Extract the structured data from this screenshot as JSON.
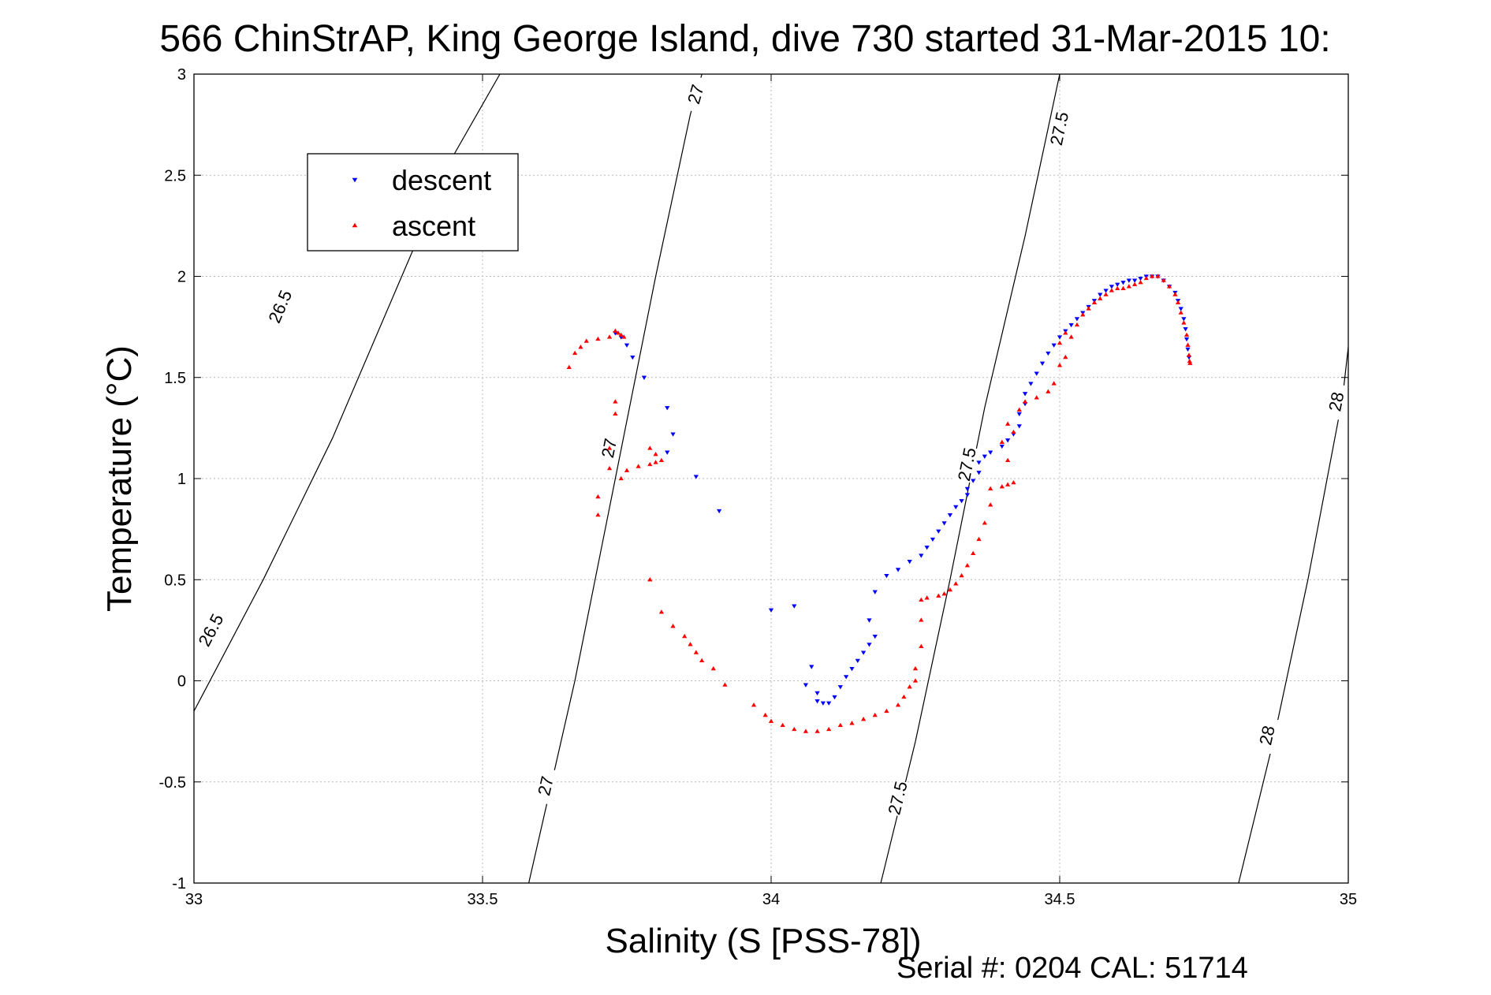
{
  "chart_data": {
    "type": "scatter",
    "title": "566 ChinStrAP, King George Island, dive 730 started 31-Mar-2015 10:",
    "xlabel": "Salinity (S [PSS-78])",
    "ylabel": "Temperature (°C)",
    "xlim": [
      33,
      35
    ],
    "ylim": [
      -1,
      3
    ],
    "xticks": [
      "33",
      "33.5",
      "34",
      "34.5",
      "35"
    ],
    "yticks": [
      "-1",
      "-0.5",
      "0",
      "0.5",
      "1",
      "1.5",
      "2",
      "2.5",
      "3"
    ],
    "grid": true,
    "legend_position": "top-left",
    "footer": "Serial #: 0204  CAL: 51714",
    "series": [
      {
        "name": "descent",
        "color": "#0000ff",
        "marker": "triangle-down",
        "points": [
          [
            33.73,
            1.72
          ],
          [
            33.74,
            1.7
          ],
          [
            33.75,
            1.66
          ],
          [
            33.76,
            1.6
          ],
          [
            33.78,
            1.5
          ],
          [
            33.82,
            1.35
          ],
          [
            33.83,
            1.22
          ],
          [
            33.82,
            1.13
          ],
          [
            33.87,
            1.01
          ],
          [
            33.91,
            0.84
          ],
          [
            34.0,
            0.35
          ],
          [
            34.04,
            0.37
          ],
          [
            34.07,
            0.07
          ],
          [
            34.06,
            -0.02
          ],
          [
            34.08,
            -0.06
          ],
          [
            34.08,
            -0.1
          ],
          [
            34.09,
            -0.11
          ],
          [
            34.1,
            -0.11
          ],
          [
            34.11,
            -0.08
          ],
          [
            34.12,
            -0.03
          ],
          [
            34.13,
            0.02
          ],
          [
            34.14,
            0.06
          ],
          [
            34.15,
            0.1
          ],
          [
            34.16,
            0.14
          ],
          [
            34.17,
            0.18
          ],
          [
            34.18,
            0.22
          ],
          [
            34.17,
            0.3
          ],
          [
            34.18,
            0.44
          ],
          [
            34.2,
            0.52
          ],
          [
            34.22,
            0.55
          ],
          [
            34.24,
            0.59
          ],
          [
            34.26,
            0.62
          ],
          [
            34.27,
            0.66
          ],
          [
            34.28,
            0.7
          ],
          [
            34.29,
            0.74
          ],
          [
            34.3,
            0.78
          ],
          [
            34.31,
            0.82
          ],
          [
            34.32,
            0.86
          ],
          [
            34.33,
            0.89
          ],
          [
            34.34,
            0.92
          ],
          [
            34.34,
            0.95
          ],
          [
            34.35,
            0.99
          ],
          [
            34.36,
            1.03
          ],
          [
            34.36,
            1.08
          ],
          [
            34.37,
            1.11
          ],
          [
            34.38,
            1.13
          ],
          [
            34.4,
            1.16
          ],
          [
            34.41,
            1.19
          ],
          [
            34.42,
            1.22
          ],
          [
            34.43,
            1.26
          ],
          [
            34.43,
            1.32
          ],
          [
            34.44,
            1.37
          ],
          [
            34.44,
            1.42
          ],
          [
            34.45,
            1.47
          ],
          [
            34.46,
            1.52
          ],
          [
            34.47,
            1.57
          ],
          [
            34.48,
            1.62
          ],
          [
            34.49,
            1.66
          ],
          [
            34.5,
            1.7
          ],
          [
            34.51,
            1.73
          ],
          [
            34.52,
            1.76
          ],
          [
            34.53,
            1.79
          ],
          [
            34.54,
            1.82
          ],
          [
            34.55,
            1.85
          ],
          [
            34.56,
            1.88
          ],
          [
            34.57,
            1.91
          ],
          [
            34.58,
            1.93
          ],
          [
            34.59,
            1.95
          ],
          [
            34.6,
            1.96
          ],
          [
            34.61,
            1.97
          ],
          [
            34.62,
            1.98
          ],
          [
            34.63,
            1.98
          ],
          [
            34.64,
            1.99
          ],
          [
            34.65,
            2.0
          ],
          [
            34.66,
            2.0
          ],
          [
            34.67,
            2.0
          ],
          [
            34.68,
            1.98
          ],
          [
            34.69,
            1.95
          ],
          [
            34.7,
            1.92
          ],
          [
            34.705,
            1.88
          ],
          [
            34.71,
            1.84
          ],
          [
            34.715,
            1.79
          ],
          [
            34.718,
            1.74
          ],
          [
            34.72,
            1.69
          ],
          [
            34.722,
            1.64
          ],
          [
            34.724,
            1.6
          ]
        ]
      },
      {
        "name": "ascent",
        "color": "#ff0000",
        "marker": "triangle-up",
        "points": [
          [
            33.65,
            1.55
          ],
          [
            33.66,
            1.62
          ],
          [
            33.67,
            1.65
          ],
          [
            33.68,
            1.68
          ],
          [
            33.7,
            1.69
          ],
          [
            33.72,
            1.7
          ],
          [
            33.73,
            1.73
          ],
          [
            33.735,
            1.72
          ],
          [
            33.74,
            1.71
          ],
          [
            33.745,
            1.7
          ],
          [
            33.73,
            1.38
          ],
          [
            33.73,
            1.32
          ],
          [
            33.72,
            1.15
          ],
          [
            33.72,
            1.05
          ],
          [
            33.74,
            1.0
          ],
          [
            33.75,
            1.04
          ],
          [
            33.77,
            1.06
          ],
          [
            33.79,
            1.07
          ],
          [
            33.8,
            1.08
          ],
          [
            33.81,
            1.09
          ],
          [
            33.79,
            1.15
          ],
          [
            33.8,
            1.12
          ],
          [
            33.7,
            0.91
          ],
          [
            33.7,
            0.82
          ],
          [
            33.79,
            0.5
          ],
          [
            33.81,
            0.34
          ],
          [
            33.83,
            0.27
          ],
          [
            33.85,
            0.22
          ],
          [
            33.86,
            0.18
          ],
          [
            33.87,
            0.14
          ],
          [
            33.88,
            0.1
          ],
          [
            33.9,
            0.06
          ],
          [
            33.92,
            -0.02
          ],
          [
            33.97,
            -0.12
          ],
          [
            33.99,
            -0.17
          ],
          [
            34.0,
            -0.2
          ],
          [
            34.02,
            -0.22
          ],
          [
            34.04,
            -0.24
          ],
          [
            34.06,
            -0.25
          ],
          [
            34.08,
            -0.25
          ],
          [
            34.1,
            -0.24
          ],
          [
            34.12,
            -0.22
          ],
          [
            34.14,
            -0.21
          ],
          [
            34.16,
            -0.19
          ],
          [
            34.18,
            -0.17
          ],
          [
            34.2,
            -0.15
          ],
          [
            34.22,
            -0.12
          ],
          [
            34.23,
            -0.08
          ],
          [
            34.24,
            -0.03
          ],
          [
            34.25,
            0.0
          ],
          [
            34.25,
            0.06
          ],
          [
            34.26,
            0.17
          ],
          [
            34.26,
            0.3
          ],
          [
            34.26,
            0.4
          ],
          [
            34.27,
            0.41
          ],
          [
            34.29,
            0.42
          ],
          [
            34.3,
            0.43
          ],
          [
            34.31,
            0.45
          ],
          [
            34.32,
            0.48
          ],
          [
            34.33,
            0.52
          ],
          [
            34.34,
            0.57
          ],
          [
            34.35,
            0.63
          ],
          [
            34.36,
            0.7
          ],
          [
            34.37,
            0.78
          ],
          [
            34.38,
            0.87
          ],
          [
            34.38,
            0.95
          ],
          [
            34.4,
            0.96
          ],
          [
            34.41,
            0.97
          ],
          [
            34.42,
            0.98
          ],
          [
            34.41,
            1.09
          ],
          [
            34.4,
            1.18
          ],
          [
            34.42,
            1.23
          ],
          [
            34.41,
            1.27
          ],
          [
            34.43,
            1.34
          ],
          [
            34.44,
            1.38
          ],
          [
            34.46,
            1.4
          ],
          [
            34.48,
            1.43
          ],
          [
            34.49,
            1.47
          ],
          [
            34.5,
            1.56
          ],
          [
            34.51,
            1.6
          ],
          [
            34.5,
            1.67
          ],
          [
            34.51,
            1.72
          ],
          [
            34.52,
            1.7
          ],
          [
            34.53,
            1.76
          ],
          [
            34.54,
            1.81
          ],
          [
            34.55,
            1.84
          ],
          [
            34.56,
            1.87
          ],
          [
            34.57,
            1.89
          ],
          [
            34.58,
            1.91
          ],
          [
            34.59,
            1.93
          ],
          [
            34.6,
            1.94
          ],
          [
            34.61,
            1.94
          ],
          [
            34.62,
            1.95
          ],
          [
            34.63,
            1.96
          ],
          [
            34.64,
            1.97
          ],
          [
            34.65,
            1.99
          ],
          [
            34.66,
            2.0
          ],
          [
            34.67,
            2.0
          ],
          [
            34.68,
            1.98
          ],
          [
            34.69,
            1.95
          ],
          [
            34.7,
            1.91
          ],
          [
            34.705,
            1.87
          ],
          [
            34.71,
            1.82
          ],
          [
            34.715,
            1.77
          ],
          [
            34.72,
            1.71
          ],
          [
            34.722,
            1.66
          ],
          [
            34.724,
            1.61
          ],
          [
            34.725,
            1.58
          ],
          [
            34.726,
            1.57
          ]
        ]
      }
    ],
    "contours": [
      {
        "label": "26.5",
        "points": [
          [
            33.0,
            -0.15
          ],
          [
            33.12,
            0.5
          ],
          [
            33.24,
            1.2
          ],
          [
            33.36,
            2.0
          ],
          [
            33.45,
            2.6
          ],
          [
            33.53,
            3.0
          ]
        ],
        "label_positions": [
          [
            33.03,
            0.25
          ],
          [
            33.15,
            1.85
          ]
        ]
      },
      {
        "label": "27",
        "points": [
          [
            33.58,
            -1.0
          ],
          [
            33.66,
            0.0
          ],
          [
            33.73,
            1.0
          ],
          [
            33.8,
            2.0
          ],
          [
            33.86,
            2.8
          ],
          [
            33.88,
            3.0
          ]
        ],
        "label_positions": [
          [
            33.61,
            -0.52
          ],
          [
            33.72,
            1.15
          ],
          [
            33.87,
            2.9
          ]
        ]
      },
      {
        "label": "27.5",
        "points": [
          [
            34.19,
            -1.0
          ],
          [
            34.25,
            -0.3
          ],
          [
            34.31,
            0.5
          ],
          [
            34.37,
            1.35
          ],
          [
            34.44,
            2.2
          ],
          [
            34.5,
            3.0
          ]
        ],
        "label_positions": [
          [
            34.22,
            -0.58
          ],
          [
            34.34,
            1.07
          ],
          [
            34.5,
            2.73
          ]
        ]
      },
      {
        "label": "28",
        "points": [
          [
            34.81,
            -1.0
          ],
          [
            34.87,
            -0.3
          ],
          [
            34.93,
            0.5
          ],
          [
            34.99,
            1.4
          ],
          [
            35.0,
            1.65
          ]
        ],
        "label_positions": [
          [
            34.86,
            -0.27
          ],
          [
            34.98,
            1.38
          ]
        ]
      }
    ]
  }
}
